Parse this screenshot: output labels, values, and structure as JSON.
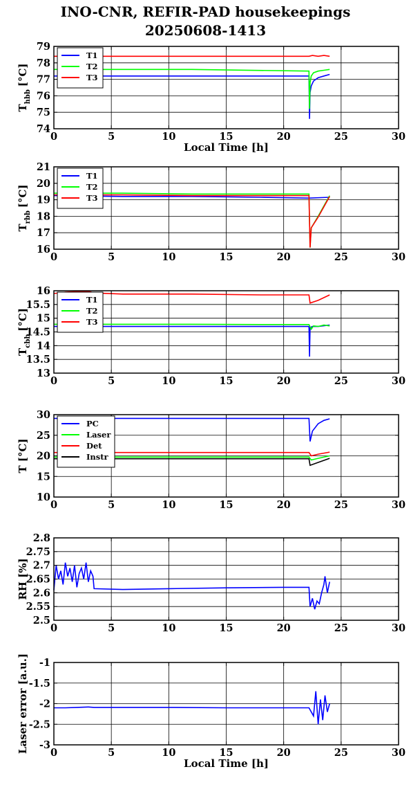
{
  "title": {
    "line1": "INO-CNR, REFIR-PAD housekeepings",
    "line2": "20250608-1413"
  },
  "colors": {
    "blue": "#0000ff",
    "green": "#00ff00",
    "red": "#ff0000",
    "black": "#000000"
  },
  "chart_data": [
    {
      "type": "line",
      "ylabel": "T",
      "ylabel_sub": "hbb",
      "ylabel_unit": "[°C]",
      "xlabel": "Local Time [h]",
      "xlim": [
        0,
        30
      ],
      "ylim": [
        74,
        79
      ],
      "xticks": [
        "0",
        "5",
        "10",
        "15",
        "20",
        "25",
        "30"
      ],
      "yticks": [
        "74",
        "75",
        "76",
        "77",
        "78",
        "79"
      ],
      "grid": true,
      "legend": "top-left",
      "series": [
        {
          "name": "T1",
          "color": "blue",
          "x": [
            0,
            5,
            12,
            22.2,
            22.25,
            22.3,
            22.4,
            22.6,
            23,
            23.5,
            24
          ],
          "y": [
            77.2,
            77.2,
            77.2,
            77.2,
            74.6,
            76.2,
            76.6,
            76.9,
            77.1,
            77.2,
            77.3
          ]
        },
        {
          "name": "T2",
          "color": "green",
          "x": [
            0,
            5,
            12,
            22.2,
            22.25,
            22.3,
            22.4,
            22.6,
            23,
            23.5,
            24
          ],
          "y": [
            77.6,
            77.6,
            77.6,
            77.5,
            75.2,
            76.8,
            77.2,
            77.4,
            77.5,
            77.55,
            77.6
          ]
        },
        {
          "name": "T3",
          "color": "red",
          "x": [
            0,
            5,
            10,
            15,
            20,
            22.2,
            22.5,
            23,
            23.5,
            24
          ],
          "y": [
            78.4,
            78.4,
            78.4,
            78.4,
            78.4,
            78.4,
            78.45,
            78.4,
            78.45,
            78.4
          ]
        }
      ]
    },
    {
      "type": "line",
      "ylabel": "T",
      "ylabel_sub": "rbb",
      "ylabel_unit": "[°C]",
      "xlabel": "",
      "xlim": [
        0,
        30
      ],
      "ylim": [
        16,
        21
      ],
      "xticks": [
        "0",
        "5",
        "10",
        "15",
        "20",
        "25",
        "30"
      ],
      "yticks": [
        "16",
        "17",
        "18",
        "19",
        "20",
        "21"
      ],
      "grid": true,
      "legend": "top-left",
      "series": [
        {
          "name": "T1",
          "color": "blue",
          "x": [
            0,
            6,
            12,
            18,
            22.2,
            24
          ],
          "y": [
            19.25,
            19.2,
            19.2,
            19.15,
            19.1,
            19.15
          ]
        },
        {
          "name": "T2",
          "color": "green",
          "x": [
            0,
            6,
            12,
            18,
            22.2,
            22.3,
            22.4,
            23,
            24
          ],
          "y": [
            19.4,
            19.4,
            19.35,
            19.35,
            19.35,
            16.1,
            17.3,
            18.0,
            19.25
          ]
        },
        {
          "name": "T3",
          "color": "red",
          "x": [
            0,
            6,
            12,
            18,
            22.2,
            22.3,
            22.4,
            23,
            24
          ],
          "y": [
            19.3,
            19.3,
            19.25,
            19.25,
            19.25,
            16.1,
            17.3,
            17.95,
            19.2
          ]
        }
      ]
    },
    {
      "type": "line",
      "ylabel": "T",
      "ylabel_sub": "cbb",
      "ylabel_unit": "[°C]",
      "xlabel": "",
      "xlim": [
        0,
        30
      ],
      "ylim": [
        13,
        16
      ],
      "xticks": [
        "0",
        "5",
        "10",
        "15",
        "20",
        "25",
        "30"
      ],
      "yticks": [
        "13",
        "13.5",
        "14",
        "14.5",
        "15",
        "15.5",
        "16"
      ],
      "grid": true,
      "legend": "top-left",
      "series": [
        {
          "name": "T1",
          "color": "blue",
          "x": [
            0,
            6,
            12,
            18,
            22.2,
            22.25,
            22.3,
            22.5,
            23,
            24
          ],
          "y": [
            14.7,
            14.7,
            14.7,
            14.7,
            14.7,
            13.6,
            14.65,
            14.7,
            14.7,
            14.75
          ]
        },
        {
          "name": "T2",
          "color": "green",
          "x": [
            0,
            6,
            12,
            18,
            22.2,
            22.4,
            22.6,
            23,
            23.5,
            24
          ],
          "y": [
            14.78,
            14.78,
            14.78,
            14.77,
            14.77,
            14.6,
            14.72,
            14.7,
            14.75,
            14.72
          ]
        },
        {
          "name": "T3",
          "color": "red",
          "x": [
            0,
            1,
            2,
            3,
            3.5,
            6,
            12,
            18,
            22.2,
            22.3,
            23,
            24
          ],
          "y": [
            15.9,
            15.95,
            15.97,
            15.98,
            15.92,
            15.88,
            15.88,
            15.85,
            15.85,
            15.55,
            15.65,
            15.85
          ]
        }
      ]
    },
    {
      "type": "line",
      "ylabel": "T [°C]",
      "ylabel_sub": "",
      "ylabel_unit": "",
      "xlabel": "",
      "xlim": [
        0,
        30
      ],
      "ylim": [
        10,
        30
      ],
      "xticks": [
        "0",
        "5",
        "10",
        "15",
        "20",
        "25",
        "30"
      ],
      "yticks": [
        "10",
        "15",
        "20",
        "25",
        "30"
      ],
      "grid": true,
      "legend": "top-left",
      "series": [
        {
          "name": "PC",
          "color": "blue",
          "x": [
            0,
            6,
            12,
            18,
            22.2,
            22.3,
            22.5,
            23,
            23.5,
            24
          ],
          "y": [
            29.1,
            29.1,
            29.1,
            29.1,
            29.1,
            23.5,
            26.0,
            27.8,
            28.6,
            29.0
          ]
        },
        {
          "name": "Laser",
          "color": "green",
          "x": [
            0,
            6,
            12,
            18,
            22.2,
            22.4,
            23,
            24
          ],
          "y": [
            19.7,
            19.7,
            19.7,
            19.7,
            19.7,
            19.0,
            19.4,
            20.0
          ]
        },
        {
          "name": "Det",
          "color": "red",
          "x": [
            0,
            6,
            12,
            18,
            22.2,
            22.4,
            23,
            24
          ],
          "y": [
            20.8,
            20.8,
            20.8,
            20.8,
            20.8,
            20.0,
            20.4,
            20.9
          ]
        },
        {
          "name": "Instr",
          "color": "black",
          "x": [
            0,
            6,
            12,
            18,
            22.2,
            22.3,
            23,
            24
          ],
          "y": [
            19.3,
            19.3,
            19.3,
            19.3,
            19.3,
            17.7,
            18.4,
            19.4
          ]
        }
      ]
    },
    {
      "type": "line",
      "ylabel": "RH [%]",
      "ylabel_sub": "",
      "ylabel_unit": "",
      "xlabel": "",
      "xlim": [
        0,
        30
      ],
      "ylim": [
        2.5,
        2.8
      ],
      "xticks": [
        "0",
        "5",
        "10",
        "15",
        "20",
        "25",
        "30"
      ],
      "yticks": [
        "2.5",
        "2.55",
        "2.6",
        "2.65",
        "2.7",
        "2.75",
        "2.8"
      ],
      "grid": true,
      "legend": "none",
      "series": [
        {
          "name": "",
          "color": "blue",
          "x": [
            0,
            0.2,
            0.4,
            0.6,
            0.8,
            1.0,
            1.2,
            1.4,
            1.6,
            1.8,
            2.0,
            2.2,
            2.4,
            2.6,
            2.8,
            3.0,
            3.2,
            3.4,
            3.5,
            6,
            10,
            15,
            20,
            22.2,
            22.3,
            22.5,
            22.7,
            22.9,
            23.1,
            23.3,
            23.5,
            23.6,
            23.8,
            24.0
          ],
          "y": [
            2.61,
            2.7,
            2.65,
            2.68,
            2.63,
            2.71,
            2.66,
            2.69,
            2.64,
            2.7,
            2.62,
            2.67,
            2.69,
            2.65,
            2.71,
            2.64,
            2.68,
            2.66,
            2.615,
            2.612,
            2.615,
            2.618,
            2.62,
            2.62,
            2.55,
            2.58,
            2.54,
            2.57,
            2.56,
            2.6,
            2.63,
            2.66,
            2.6,
            2.64
          ]
        }
      ]
    },
    {
      "type": "line",
      "ylabel": "Laser error [a.u.]",
      "ylabel_sub": "",
      "ylabel_unit": "",
      "xlabel": "Local Time [h]",
      "xlim": [
        0,
        30
      ],
      "ylim": [
        -3,
        -1
      ],
      "xticks": [
        "0",
        "5",
        "10",
        "15",
        "20",
        "25",
        "30"
      ],
      "yticks": [
        "-3",
        "-2.5",
        "-2",
        "-1.5",
        "-1"
      ],
      "grid": true,
      "legend": "none",
      "series": [
        {
          "name": "",
          "color": "blue",
          "x": [
            0,
            1,
            2,
            3,
            3.5,
            6,
            10,
            15,
            20,
            22.2,
            22.6,
            22.8,
            23.0,
            23.2,
            23.4,
            23.6,
            23.8,
            24.0
          ],
          "y": [
            -2.1,
            -2.1,
            -2.09,
            -2.08,
            -2.09,
            -2.09,
            -2.09,
            -2.1,
            -2.1,
            -2.1,
            -2.3,
            -1.7,
            -2.5,
            -1.9,
            -2.4,
            -1.8,
            -2.2,
            -2.0
          ]
        }
      ]
    }
  ]
}
